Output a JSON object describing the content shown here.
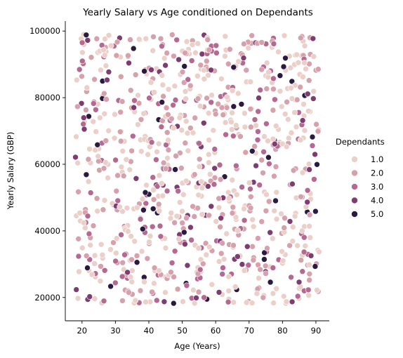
{
  "chart_data": {
    "type": "scatter",
    "title": "Yearly Salary vs Age conditioned on Dependants",
    "xlabel": "Age (Years)",
    "ylabel": "Yearly Salary (GBP)",
    "xlim": [
      15,
      94
    ],
    "ylim": [
      13000,
      103000
    ],
    "x_ticks": [
      20,
      30,
      40,
      50,
      60,
      70,
      80,
      90
    ],
    "y_ticks": [
      20000,
      40000,
      60000,
      80000,
      100000
    ],
    "grid": false,
    "legend": {
      "title": "Dependants",
      "placement": "right",
      "entries": [
        "1.0",
        "2.0",
        "3.0",
        "4.0",
        "5.0"
      ]
    },
    "hue_colors": [
      "#ebd0c9",
      "#d6a0ac",
      "#b56890",
      "#7e3d71",
      "#2b1a3f"
    ],
    "point_count": 900,
    "x_range": [
      18,
      91
    ],
    "y_range": [
      18000,
      99000
    ],
    "hue_levels": [
      1.0,
      2.0,
      3.0,
      4.0,
      5.0
    ],
    "hue_weights": [
      0.4,
      0.3,
      0.18,
      0.07,
      0.05
    ]
  }
}
